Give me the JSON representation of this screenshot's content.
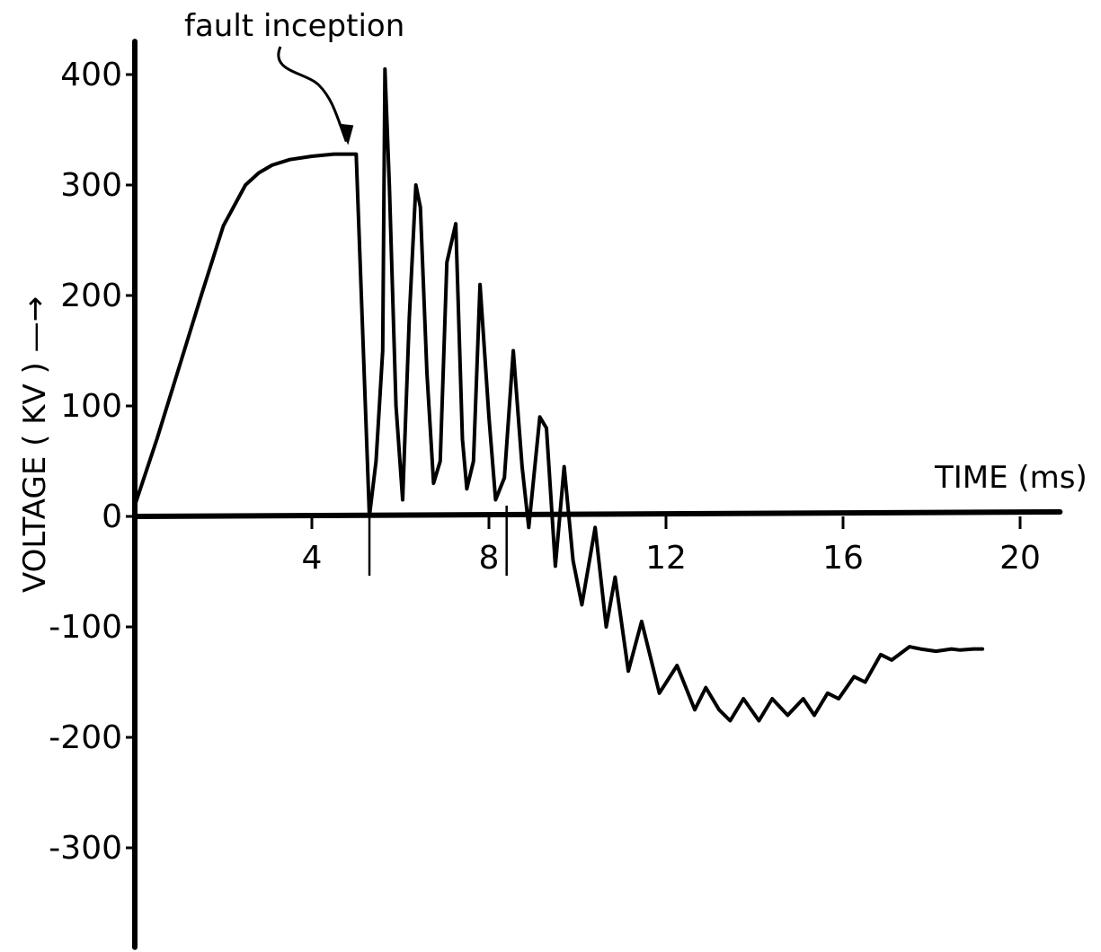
{
  "chart_data": {
    "type": "line",
    "title": "",
    "xlabel": "TIME (ms)",
    "ylabel": "VOLTAGE ( KV ) —→",
    "xlim": [
      0,
      20.9
    ],
    "ylim": [
      -390,
      430
    ],
    "x_ticks": [
      4,
      8,
      12,
      16,
      20
    ],
    "x_tick_labels": [
      "4",
      "8",
      "12",
      "16",
      "20"
    ],
    "y_ticks": [
      400,
      300,
      200,
      100,
      0,
      -100,
      -200,
      -300
    ],
    "y_tick_labels": [
      "400",
      "300",
      "200",
      "100",
      "0",
      "-100",
      "-200",
      "-300"
    ],
    "grid": false,
    "annotations": [
      {
        "text": "fault inception",
        "x": 4.9,
        "y": 328
      }
    ],
    "marker_lines_x": [
      5.3,
      8.4
    ],
    "series": [
      {
        "x": [
          0,
          0.5,
          1.0,
          1.5,
          2.0,
          2.5,
          2.8,
          3.1,
          3.5,
          4.0,
          4.5,
          4.9,
          5.0,
          5.3,
          5.45,
          5.6,
          5.65,
          5.75,
          5.9,
          6.05,
          6.2,
          6.35,
          6.45,
          6.6,
          6.75,
          6.9,
          7.05,
          7.25,
          7.4,
          7.5,
          7.65,
          7.8,
          8.0,
          8.15,
          8.35,
          8.55,
          8.75,
          8.9,
          9.15,
          9.3,
          9.5,
          9.7,
          9.9,
          10.1,
          10.4,
          10.65,
          10.85,
          11.15,
          11.45,
          11.85,
          12.25,
          12.65,
          12.9,
          13.2,
          13.45,
          13.75,
          14.1,
          14.4,
          14.75,
          15.1,
          15.35,
          15.65,
          15.9,
          16.25,
          16.5,
          16.85,
          17.1,
          17.5,
          17.75,
          18.1,
          18.45,
          18.65,
          18.95,
          19.15
        ],
        "y": [
          10,
          70,
          135,
          200,
          263,
          300,
          311,
          318,
          323,
          326,
          328,
          328,
          328,
          0,
          50,
          150,
          405,
          300,
          100,
          15,
          180,
          300,
          280,
          130,
          30,
          50,
          230,
          265,
          70,
          25,
          50,
          210,
          90,
          15,
          35,
          150,
          45,
          -10,
          90,
          80,
          -45,
          45,
          -40,
          -80,
          -10,
          -100,
          -55,
          -140,
          -95,
          -160,
          -135,
          -175,
          -155,
          -175,
          -185,
          -165,
          -185,
          -165,
          -180,
          -165,
          -180,
          -160,
          -165,
          -145,
          -150,
          -125,
          -130,
          -118,
          -120,
          -122,
          -120,
          -121,
          -120,
          -120
        ]
      }
    ]
  }
}
